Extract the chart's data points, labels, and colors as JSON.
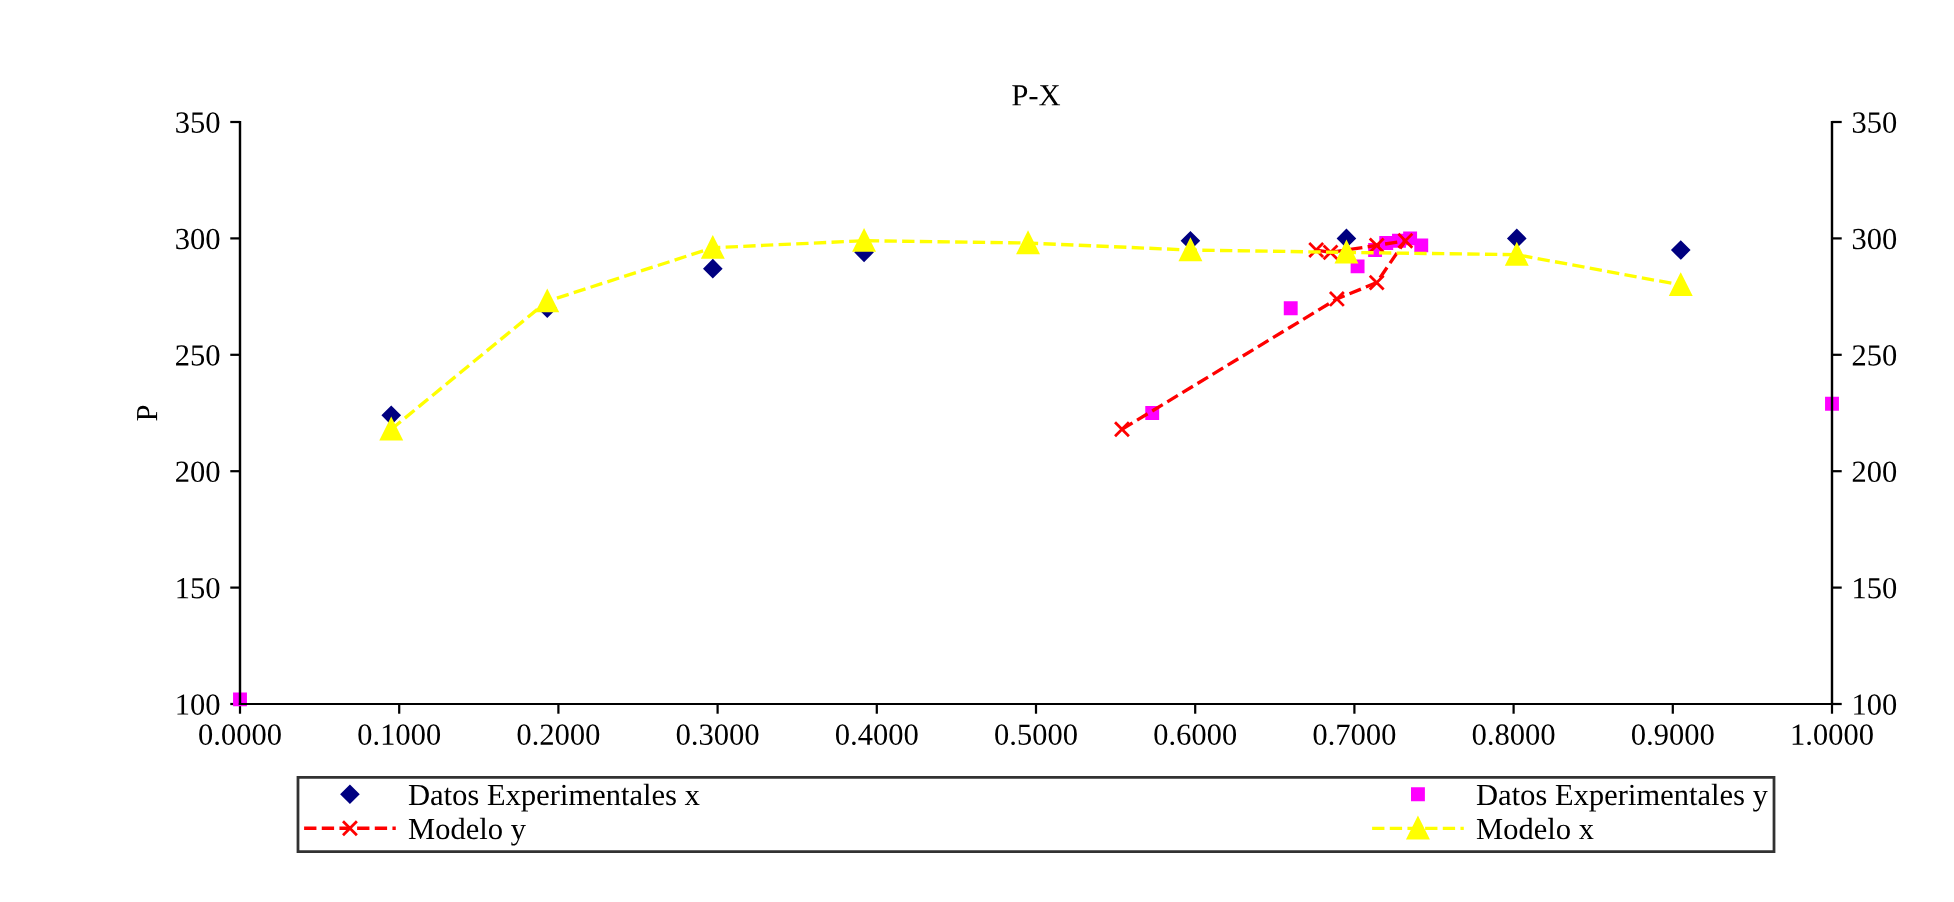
{
  "chart_data": {
    "type": "scatter",
    "title": "P-X",
    "ylabel": "P",
    "xlim": [
      0,
      1
    ],
    "xticks": [
      {
        "value": 0,
        "label": "0.0000"
      },
      {
        "value": 0.1,
        "label": "0.1000"
      },
      {
        "value": 0.2,
        "label": "0.2000"
      },
      {
        "value": 0.3,
        "label": "0.3000"
      },
      {
        "value": 0.4,
        "label": "0.4000"
      },
      {
        "value": 0.5,
        "label": "0.5000"
      },
      {
        "value": 0.6,
        "label": "0.6000"
      },
      {
        "value": 0.7,
        "label": "0.7000"
      },
      {
        "value": 0.8,
        "label": "0.8000"
      },
      {
        "value": 0.9,
        "label": "0.9000"
      },
      {
        "value": 1,
        "label": "1.0000"
      }
    ],
    "ylim": [
      100,
      350
    ],
    "yticks": [
      100,
      150,
      200,
      250,
      300,
      350
    ],
    "y2lim": [
      100,
      350
    ],
    "y2ticks": [
      100,
      150,
      200,
      250,
      300,
      350
    ],
    "grid": false,
    "legend": "bottom",
    "series": [
      {
        "name": "Datos Experimentales x",
        "marker": "diamond",
        "color": "#000080",
        "x": [
          0.095,
          0.193,
          0.297,
          0.392,
          0.597,
          0.695,
          0.802,
          0.905
        ],
        "values": [
          224,
          270,
          287,
          294,
          299,
          300,
          300,
          295
        ]
      },
      {
        "name": "Datos Experimentales y",
        "marker": "square",
        "color": "#ff00ff",
        "x": [
          0.0,
          0.573,
          0.66,
          0.702,
          0.713,
          0.72,
          0.728,
          0.735,
          0.742,
          1.0
        ],
        "values": [
          102,
          225,
          270,
          288,
          295,
          298,
          299,
          300,
          297,
          229
        ]
      },
      {
        "name": "Modelo y",
        "type": "line",
        "marker": "cross",
        "line_style": "dashed",
        "color": "#ff0000",
        "x": [
          0.554,
          0.689,
          0.714,
          0.732,
          0.714,
          0.685,
          0.676
        ],
        "values": [
          218,
          274,
          281,
          299,
          297,
          294,
          295
        ]
      },
      {
        "name": "Modelo x",
        "type": "line",
        "marker": "triangle",
        "line_style": "dashed",
        "color": "#ffff00",
        "x": [
          0.095,
          0.193,
          0.297,
          0.392,
          0.495,
          0.597,
          0.695,
          0.802,
          0.905
        ],
        "values": [
          218,
          273,
          296,
          299,
          298,
          295,
          294,
          293,
          280
        ]
      }
    ]
  }
}
